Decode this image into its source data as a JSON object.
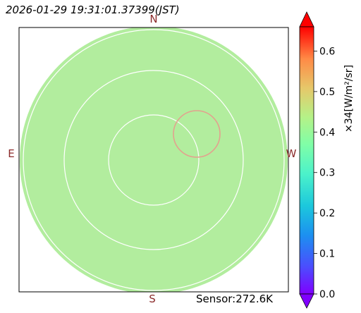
{
  "header": {
    "timestamp": "2026-01-29 19:31:01.37399(JST)"
  },
  "directions": {
    "north": "N",
    "south": "S",
    "east": "E",
    "west": "W"
  },
  "footer": {
    "sensor_text": "Sensor:272.6K"
  },
  "colorbar": {
    "label": "×34[W/m²/sr]",
    "ticks": [
      "0.0",
      "0.1",
      "0.2",
      "0.3",
      "0.4",
      "0.5",
      "0.6"
    ],
    "min": 0.0,
    "max": 0.66,
    "extend": "both"
  },
  "chart_data": {
    "type": "heatmap",
    "title": "2026-01-29 19:31:01.37399(JST)",
    "projection": "all-sky (polar)",
    "field_value": 0.39,
    "field_color": "#b2ed9e",
    "outside_color": "#ffffff",
    "range_rings": 3,
    "highlight_circle_color": "#e3a18e",
    "colormap": "rainbow",
    "vmin": 0.0,
    "vmax": 0.66,
    "colorbar_ticks": [
      0.0,
      0.1,
      0.2,
      0.3,
      0.4,
      0.5,
      0.6
    ],
    "colorbar_label": "×34[W/m²/sr]",
    "sensor_temperature_K": 272.6
  }
}
